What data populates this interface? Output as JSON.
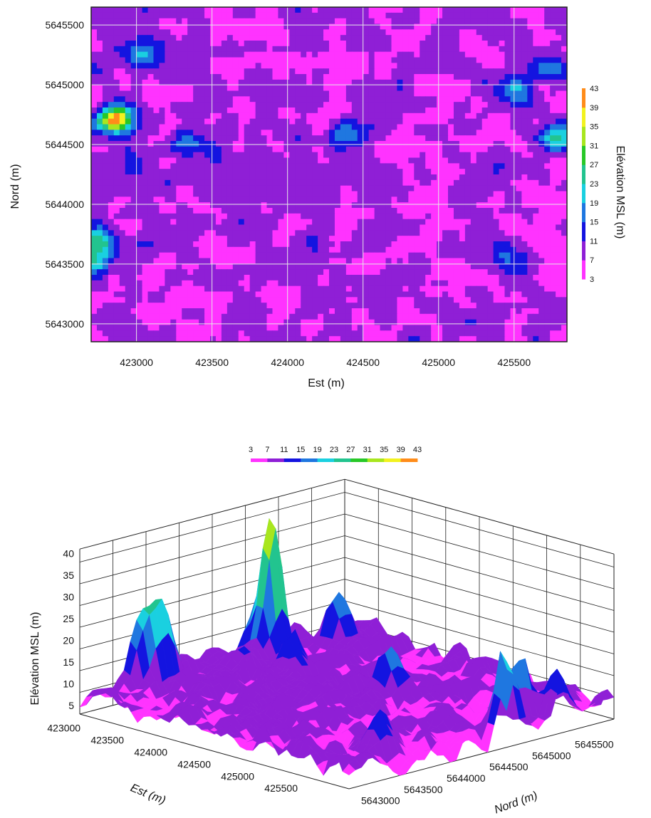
{
  "palette": [
    "#ff33ff",
    "#8f1fd6",
    "#1414e0",
    "#1f77e0",
    "#1ad0e0",
    "#22c48f",
    "#28c828",
    "#a8e61e",
    "#f2f21f",
    "#ff8c1a",
    "#ee1111"
  ],
  "levels": [
    3,
    7,
    11,
    15,
    19,
    23,
    27,
    31,
    35,
    39,
    43
  ],
  "chart_data": [
    {
      "type": "heatmap",
      "title": "",
      "xlabel": "Est (m)",
      "ylabel": "Nord (m)",
      "colorbar_label": "Elévation MSL (m)",
      "x_ticks": [
        "423000",
        "423500",
        "424000",
        "424500",
        "425000",
        "425500"
      ],
      "y_ticks": [
        "5645500",
        "5645000",
        "5644500",
        "5644000",
        "5643500",
        "5643000"
      ],
      "y_tick_values": [
        5645500,
        5645000,
        5644500,
        5644000,
        5643500,
        5643000
      ],
      "x_tick_values": [
        423000,
        423500,
        424000,
        424500,
        425000,
        425500
      ],
      "xlim": [
        422700,
        425850
      ],
      "ylim": [
        5642850,
        5645650
      ],
      "colorbar_ticks": [
        "43",
        "39",
        "35",
        "31",
        "27",
        "23",
        "19",
        "15",
        "11",
        "7",
        "3"
      ],
      "peaks": [
        {
          "x": 422860,
          "y": 5644710,
          "z": 43
        },
        {
          "x": 422750,
          "y": 5643700,
          "z": 24
        },
        {
          "x": 422710,
          "y": 5643520,
          "z": 27
        },
        {
          "x": 423050,
          "y": 5645250,
          "z": 20
        },
        {
          "x": 425500,
          "y": 5644950,
          "z": 22
        },
        {
          "x": 425750,
          "y": 5645150,
          "z": 20
        },
        {
          "x": 425780,
          "y": 5644560,
          "z": 26
        },
        {
          "x": 424400,
          "y": 5644600,
          "z": 18
        },
        {
          "x": 425450,
          "y": 5643550,
          "z": 17
        },
        {
          "x": 423350,
          "y": 5644520,
          "z": 18
        }
      ]
    },
    {
      "type": "surface",
      "title": "",
      "colorbar_ticks": [
        "3",
        "7",
        "11",
        "15",
        "19",
        "23",
        "27",
        "31",
        "35",
        "39",
        "43"
      ],
      "zlabel": "Elévation MSL (m)",
      "z_ticks": [
        "40",
        "35",
        "30",
        "25",
        "20",
        "15",
        "10",
        "5"
      ],
      "x_label": "Est (m)",
      "y_label": "Nord (m)",
      "x_ticks": [
        "423000",
        "423500",
        "424000",
        "424500",
        "425000",
        "425500"
      ],
      "y_ticks": [
        "5643000",
        "5643500",
        "5644000",
        "5644500",
        "5645000",
        "5645500"
      ]
    }
  ]
}
